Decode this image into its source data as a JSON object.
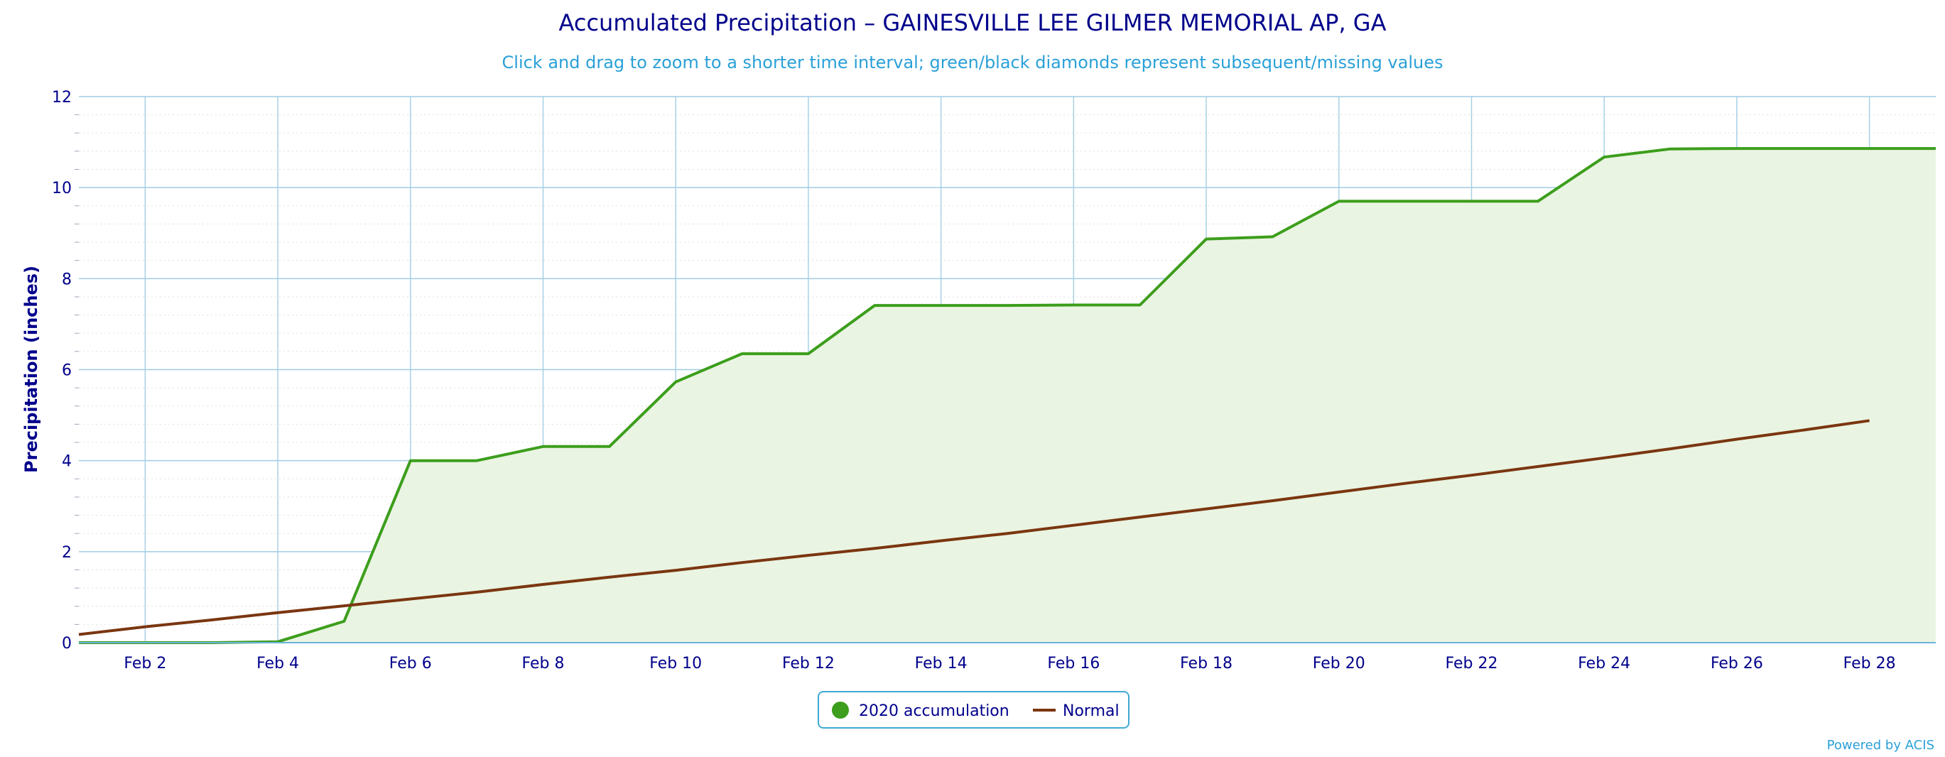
{
  "chart_data": {
    "type": "area",
    "title": "Accumulated Precipitation – GAINESVILLE LEE GILMER MEMORIAL AP, GA",
    "subtitle": "Click and drag to zoom to a shorter time interval; green/black diamonds represent subsequent/missing values",
    "xlabel": "",
    "ylabel": "Precipitation (inches)",
    "ylim": [
      0,
      12
    ],
    "xlim": [
      1,
      29
    ],
    "y_ticks": [
      0,
      2,
      4,
      6,
      8,
      10,
      12
    ],
    "x_ticks": [
      2,
      4,
      6,
      8,
      10,
      12,
      14,
      16,
      18,
      20,
      22,
      24,
      26,
      28
    ],
    "x_tick_labels": [
      "Feb 2",
      "Feb 4",
      "Feb 6",
      "Feb 8",
      "Feb 10",
      "Feb 12",
      "Feb 14",
      "Feb 16",
      "Feb 18",
      "Feb 20",
      "Feb 22",
      "Feb 24",
      "Feb 26",
      "Feb 28"
    ],
    "grid": true,
    "legend_position": "bottom-center",
    "series": [
      {
        "name": "2020 accumulation",
        "color": "#3c9e1c",
        "fill": "#eaf4e2",
        "x": [
          1,
          2,
          3,
          4,
          5,
          6,
          7,
          8,
          9,
          10,
          11,
          12,
          13,
          14,
          15,
          16,
          17,
          18,
          19,
          20,
          21,
          22,
          23,
          24,
          25,
          26,
          27,
          28,
          29
        ],
        "values": [
          0,
          0,
          0,
          0.02,
          0.47,
          4.0,
          4.0,
          4.31,
          4.31,
          5.73,
          6.35,
          6.35,
          7.41,
          7.41,
          7.41,
          7.42,
          7.42,
          8.87,
          8.92,
          9.7,
          9.7,
          9.7,
          9.7,
          10.67,
          10.85,
          10.86,
          10.86,
          10.86,
          10.86
        ]
      },
      {
        "name": "Normal",
        "color": "#7a3610",
        "x": [
          1,
          2,
          3,
          4,
          5,
          6,
          7,
          8,
          9,
          10,
          11,
          12,
          13,
          14,
          15,
          16,
          17,
          18,
          19,
          20,
          21,
          22,
          23,
          24,
          25,
          26,
          27,
          28
        ],
        "values": [
          0.18,
          0.35,
          0.5,
          0.66,
          0.81,
          0.96,
          1.11,
          1.28,
          1.44,
          1.59,
          1.76,
          1.92,
          2.07,
          2.24,
          2.4,
          2.58,
          2.76,
          2.94,
          3.12,
          3.31,
          3.5,
          3.68,
          3.87,
          4.06,
          4.26,
          4.47,
          4.67,
          4.88
        ]
      }
    ],
    "credit": "Powered by ACIS"
  }
}
